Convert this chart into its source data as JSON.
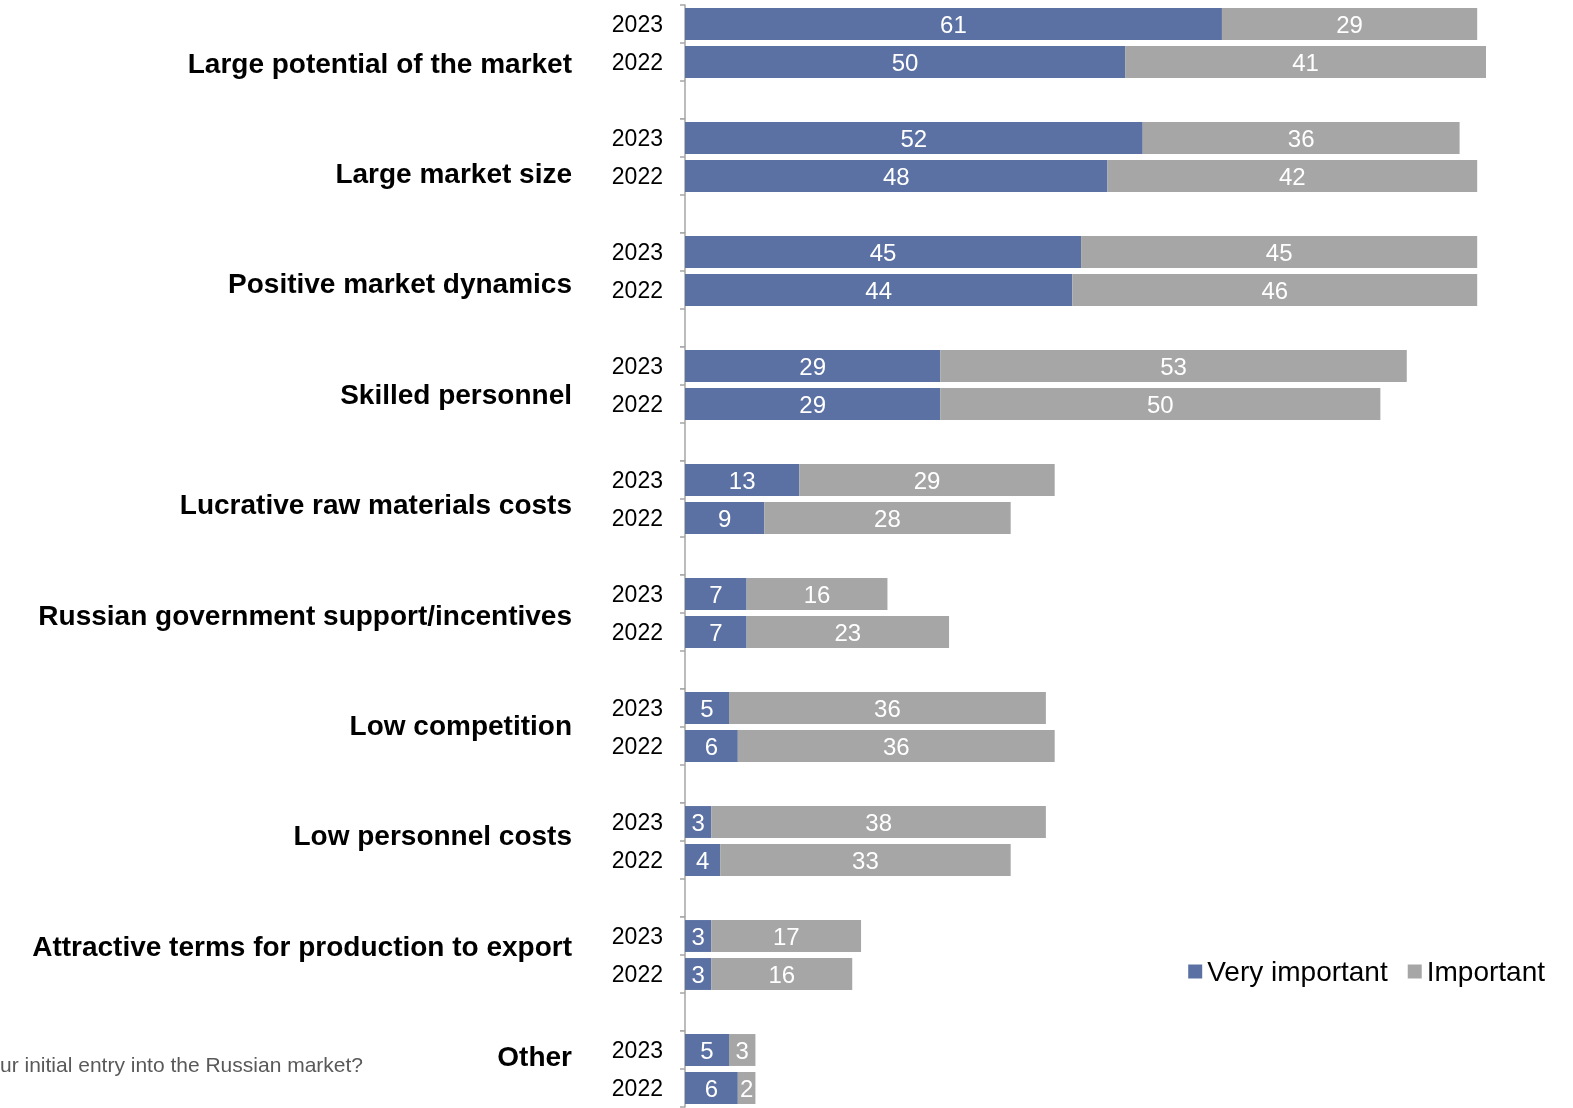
{
  "chart_data": [
    {
      "type": "bar",
      "orientation": "horizontal",
      "stacked": true,
      "data_labels": true,
      "tick_labels": "y",
      "title": "Large potential of the market",
      "categories": [
        "2023",
        "2022"
      ],
      "series": [
        {
          "color": "#5b71a3",
          "values": [
            61,
            50
          ]
        },
        {
          "color": "#a6a6a6",
          "values": [
            29,
            41
          ]
        }
      ]
    },
    {
      "type": "bar",
      "orientation": "horizontal",
      "stacked": true,
      "data_labels": true,
      "tick_labels": "y",
      "title": "Large market size",
      "categories": [
        "2023",
        "2022"
      ],
      "series": [
        {
          "color": "#5b71a3",
          "values": [
            52,
            48
          ]
        },
        {
          "color": "#a6a6a6",
          "values": [
            36,
            42
          ]
        }
      ]
    },
    {
      "type": "bar",
      "orientation": "horizontal",
      "stacked": true,
      "data_labels": true,
      "tick_labels": "y",
      "title": "Positive market dynamics",
      "categories": [
        "2023",
        "2022"
      ],
      "series": [
        {
          "color": "#5b71a3",
          "values": [
            45,
            44
          ]
        },
        {
          "color": "#a6a6a6",
          "values": [
            45,
            46
          ]
        }
      ]
    },
    {
      "type": "bar",
      "orientation": "horizontal",
      "stacked": true,
      "data_labels": true,
      "tick_labels": "y",
      "title": "Skilled personnel",
      "categories": [
        "2023",
        "2022"
      ],
      "series": [
        {
          "color": "#5b71a3",
          "values": [
            29,
            29
          ]
        },
        {
          "color": "#a6a6a6",
          "values": [
            53,
            50
          ]
        }
      ]
    },
    {
      "type": "bar",
      "orientation": "horizontal",
      "stacked": true,
      "data_labels": true,
      "tick_labels": "y",
      "title": "Lucrative raw materials costs",
      "categories": [
        "2023",
        "2022"
      ],
      "series": [
        {
          "color": "#5b71a3",
          "values": [
            13,
            9
          ]
        },
        {
          "color": "#a6a6a6",
          "values": [
            29,
            28
          ]
        }
      ]
    },
    {
      "type": "bar",
      "orientation": "horizontal",
      "stacked": true,
      "data_labels": true,
      "tick_labels": "y",
      "title": "Russian government support/incentives",
      "categories": [
        "2023",
        "2022"
      ],
      "series": [
        {
          "color": "#5b71a3",
          "values": [
            7,
            7
          ]
        },
        {
          "color": "#a6a6a6",
          "values": [
            16,
            23
          ]
        }
      ]
    },
    {
      "type": "bar",
      "orientation": "horizontal",
      "stacked": true,
      "data_labels": true,
      "tick_labels": "y",
      "title": "Low competition",
      "categories": [
        "2023",
        "2022"
      ],
      "series": [
        {
          "color": "#5b71a3",
          "values": [
            5,
            6
          ]
        },
        {
          "color": "#a6a6a6",
          "values": [
            36,
            36
          ]
        }
      ]
    },
    {
      "type": "bar",
      "orientation": "horizontal",
      "stacked": true,
      "data_labels": true,
      "tick_labels": "y",
      "title": "Low personnel costs",
      "categories": [
        "2023",
        "2022"
      ],
      "series": [
        {
          "color": "#5b71a3",
          "values": [
            3,
            4
          ]
        },
        {
          "color": "#a6a6a6",
          "values": [
            38,
            33
          ]
        }
      ]
    },
    {
      "type": "bar",
      "orientation": "horizontal",
      "stacked": true,
      "data_labels": true,
      "tick_labels": "y",
      "title": "Attractive terms for production to export",
      "categories": [
        "2023",
        "2022"
      ],
      "legend": "right",
      "series": [
        {
          "name": "Very important",
          "color": "#5b71a3",
          "values": [
            3,
            3
          ]
        },
        {
          "name": "Important",
          "color": "#a6a6a6",
          "values": [
            17,
            16
          ]
        }
      ]
    },
    {
      "type": "bar",
      "orientation": "horizontal",
      "stacked": true,
      "data_labels": true,
      "tick_labels": "y",
      "title": "Other",
      "categories": [
        "2023",
        "2022"
      ],
      "annotations": [
        "ur initial entry into the Russian market?"
      ],
      "series": [
        {
          "color": "#5b71a3",
          "values": [
            5,
            6
          ]
        },
        {
          "color": "#a6a6a6",
          "values": [
            3,
            2
          ]
        }
      ]
    }
  ]
}
